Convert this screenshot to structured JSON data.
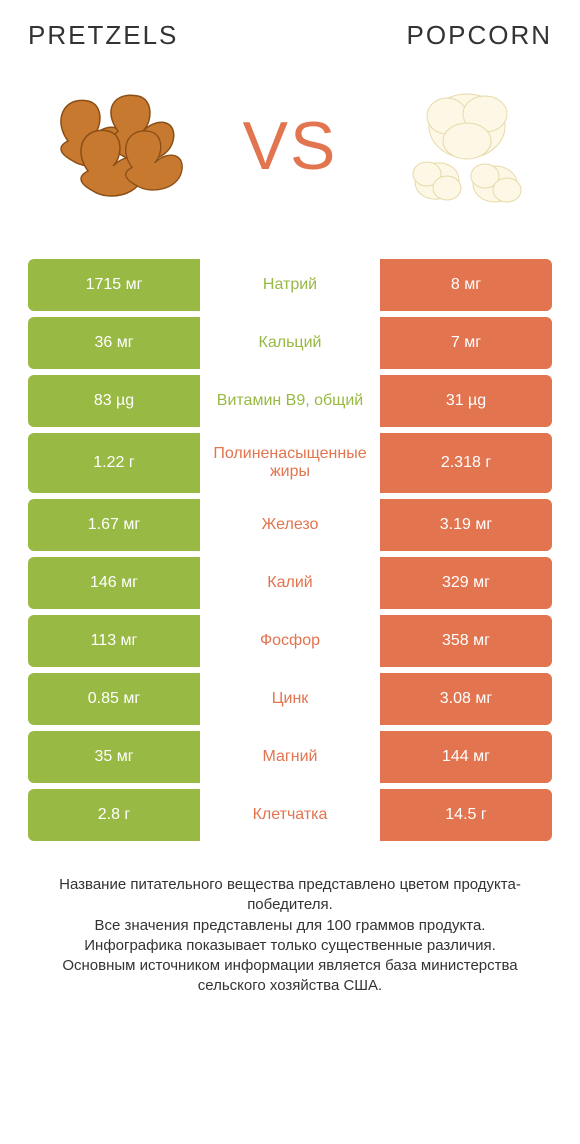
{
  "header": {
    "left_title": "PRETZELS",
    "right_title": "POPCORN",
    "vs_label": "VS"
  },
  "colors": {
    "green": "#98b943",
    "orange": "#e2744f",
    "text": "#333333",
    "background": "#ffffff"
  },
  "images": {
    "left_alt": "pretzels",
    "right_alt": "popcorn"
  },
  "rows": [
    {
      "nutrient": "Натрий",
      "nutrient_color": "#98b943",
      "left_value": "1715 мг",
      "right_value": "8 мг",
      "winner": "left",
      "tall": false
    },
    {
      "nutrient": "Кальций",
      "nutrient_color": "#98b943",
      "left_value": "36 мг",
      "right_value": "7 мг",
      "winner": "left",
      "tall": false
    },
    {
      "nutrient": "Витамин B9, общий",
      "nutrient_color": "#98b943",
      "left_value": "83 µg",
      "right_value": "31 µg",
      "winner": "left",
      "tall": false
    },
    {
      "nutrient": "Полиненасыщенные жиры",
      "nutrient_color": "#e2744f",
      "left_value": "1.22 г",
      "right_value": "2.318 г",
      "winner": "right",
      "tall": true
    },
    {
      "nutrient": "Железо",
      "nutrient_color": "#e2744f",
      "left_value": "1.67 мг",
      "right_value": "3.19 мг",
      "winner": "right",
      "tall": false
    },
    {
      "nutrient": "Калий",
      "nutrient_color": "#e2744f",
      "left_value": "146 мг",
      "right_value": "329 мг",
      "winner": "right",
      "tall": false
    },
    {
      "nutrient": "Фосфор",
      "nutrient_color": "#e2744f",
      "left_value": "113 мг",
      "right_value": "358 мг",
      "winner": "right",
      "tall": false
    },
    {
      "nutrient": "Цинк",
      "nutrient_color": "#e2744f",
      "left_value": "0.85 мг",
      "right_value": "3.08 мг",
      "winner": "right",
      "tall": false
    },
    {
      "nutrient": "Магний",
      "nutrient_color": "#e2744f",
      "left_value": "35 мг",
      "right_value": "144 мг",
      "winner": "right",
      "tall": false
    },
    {
      "nutrient": "Клетчатка",
      "nutrient_color": "#e2744f",
      "left_value": "2.8 г",
      "right_value": "14.5 г",
      "winner": "right",
      "tall": false
    }
  ],
  "footnote": "Название питательного вещества представлено цветом продукта-победителя.\nВсе значения представлены для 100 граммов продукта.\nИнфографика показывает только существенные различия.\nОсновным источником информации является база министерства сельского хозяйства США."
}
